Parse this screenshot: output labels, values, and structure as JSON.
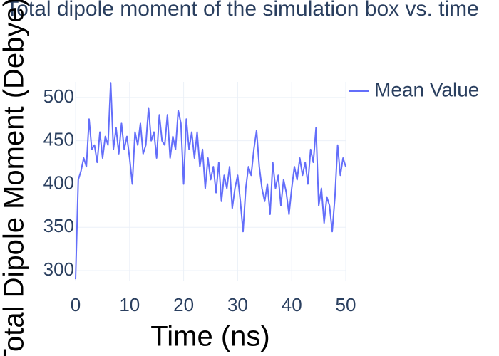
{
  "chart_data": {
    "type": "line",
    "title": "Total dipole moment of the simulation box vs. time",
    "x_label": "Time (ns)",
    "y_label": "Total Dipole Moment (Debye)",
    "x": [
      0,
      0.5,
      1,
      1.5,
      2,
      2.5,
      3,
      3.5,
      4,
      4.5,
      5,
      5.5,
      6,
      6.5,
      7,
      7.5,
      8,
      8.5,
      9,
      9.5,
      10,
      10.5,
      11,
      11.5,
      12,
      12.5,
      13,
      13.5,
      14,
      14.5,
      15,
      15.5,
      16,
      16.5,
      17,
      17.5,
      18,
      18.5,
      19,
      19.5,
      20,
      20.5,
      21,
      21.5,
      22,
      22.5,
      23,
      23.5,
      24,
      24.5,
      25,
      25.5,
      26,
      26.5,
      27,
      27.5,
      28,
      28.5,
      29,
      29.5,
      30,
      30.5,
      31,
      31.5,
      32,
      32.5,
      33,
      33.5,
      34,
      34.5,
      35,
      35.5,
      36,
      36.5,
      37,
      37.5,
      38,
      38.5,
      39,
      39.5,
      40,
      40.5,
      41,
      41.5,
      42,
      42.5,
      43,
      43.5,
      44,
      44.5,
      45,
      45.5,
      46,
      46.5,
      47,
      47.5,
      48,
      48.5,
      49,
      49.5,
      50
    ],
    "series": [
      {
        "name": "Mean Value",
        "color": "#636efa",
        "values": [
          290,
          405,
          415,
          430,
          420,
          475,
          440,
          445,
          425,
          460,
          430,
          455,
          445,
          517,
          440,
          465,
          435,
          470,
          440,
          455,
          430,
          400,
          460,
          445,
          470,
          435,
          445,
          488,
          450,
          460,
          430,
          480,
          450,
          445,
          480,
          430,
          455,
          440,
          485,
          470,
          400,
          475,
          440,
          460,
          430,
          460,
          420,
          440,
          395,
          430,
          405,
          420,
          390,
          425,
          380,
          410,
          395,
          420,
          372,
          395,
          410,
          380,
          345,
          395,
          420,
          410,
          440,
          462,
          420,
          395,
          380,
          400,
          365,
          425,
          395,
          410,
          375,
          405,
          390,
          365,
          395,
          420,
          405,
          430,
          410,
          425,
          400,
          440,
          425,
          465,
          375,
          395,
          355,
          385,
          375,
          345,
          385,
          445,
          410,
          430,
          420
        ]
      }
    ],
    "xlim": [
      0,
      50
    ],
    "xticks": [
      0,
      10,
      20,
      30,
      40,
      50
    ],
    "ylim": [
      288,
      518
    ],
    "yticks": [
      300,
      350,
      400,
      450,
      500
    ],
    "grid": true,
    "legend": "top-right"
  }
}
